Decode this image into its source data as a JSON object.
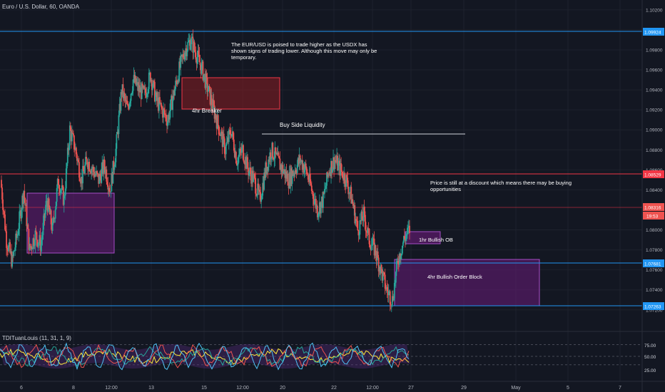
{
  "header": {
    "symbol_title": "Euro / U.S. Dollar, 60, OANDA"
  },
  "indicator": {
    "label": "TDITuanLouis (11, 31, 1, 9)",
    "levels": [
      "75.00",
      "50.00",
      "25.00"
    ]
  },
  "price_axis": {
    "ticks": [
      "1.10200",
      "1.10000",
      "1.09800",
      "1.09600",
      "1.09400",
      "1.09200",
      "1.09000",
      "1.08800",
      "1.08600",
      "1.08400",
      "1.08000",
      "1.07800",
      "1.07600",
      "1.07400",
      "1.07200"
    ],
    "tick_values": [
      1.102,
      1.1,
      1.098,
      1.096,
      1.094,
      1.092,
      1.09,
      1.088,
      1.086,
      1.084,
      1.08,
      1.078,
      1.076,
      1.074,
      1.072
    ]
  },
  "time_axis": {
    "labels": [
      "6",
      "8",
      "12:00",
      "13",
      "15",
      "12:00",
      "20",
      "22",
      "12:00",
      "27",
      "29",
      "May",
      "5",
      "7"
    ]
  },
  "annotations": {
    "top_note": "The EUR/USD is poised to trade higher as the USDX has shown signs  of trading lower. Although this move may only be temporary.",
    "breaker": "4hr Breaker",
    "liquidity": "Buy Side Liquidity",
    "discount_note": "Price is still at a discount which means there may be buying opportunities",
    "ob_1hr": "1hr Bullish OB",
    "ob_4hr": "4hr Bullish Order Block"
  },
  "level_tags": {
    "top_blue": "1.09924",
    "red_mid": "1.08529",
    "current_price": "1.08316",
    "countdown": "19:53",
    "low_blue": "1.07681",
    "bottom_blue": "1.07263"
  },
  "colors": {
    "background": "#131722",
    "up_candle": "#26a69a",
    "down_candle": "#ef5350",
    "blue_line": "#2196f3",
    "red_line": "#f23645",
    "zone_purple": "#6a1b7a",
    "zone_red": "#8b1e22"
  },
  "chart_data": {
    "type": "candlestick",
    "title": "Euro / U.S. Dollar, 60, OANDA",
    "y_axis": {
      "range": [
        1.0712,
        1.1027
      ]
    },
    "horizontal_levels": [
      1.09924,
      1.08529,
      1.08316,
      1.07681,
      1.07263
    ],
    "price_path": [
      1.085,
      1.079,
      1.0768,
      1.08,
      1.084,
      1.078,
      1.0795,
      1.0785,
      1.083,
      1.08,
      1.085,
      1.083,
      1.09,
      1.088,
      1.085,
      1.087,
      1.086,
      1.085,
      1.0865,
      1.084,
      1.088,
      1.094,
      1.092,
      1.095,
      1.094,
      1.0935,
      1.0955,
      1.093,
      1.092,
      1.091,
      1.0935,
      1.096,
      1.098,
      1.099,
      1.0975,
      1.096,
      1.094,
      1.092,
      1.09,
      1.088,
      1.09,
      1.087,
      1.088,
      1.086,
      1.085,
      1.083,
      1.086,
      1.088,
      1.087,
      1.086,
      1.085,
      1.086,
      1.087,
      1.086,
      1.084,
      1.082,
      1.083,
      1.086,
      1.087,
      1.086,
      1.085,
      1.083,
      1.08,
      1.0815,
      1.079,
      1.078,
      1.076,
      1.074,
      1.073,
      1.077,
      1.079,
      1.08
    ]
  }
}
